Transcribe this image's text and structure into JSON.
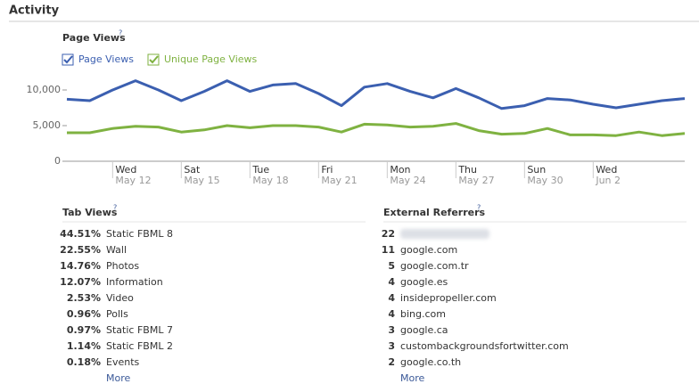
{
  "header": {
    "title": "Activity"
  },
  "chart_data": {
    "type": "line",
    "title": "Page Views",
    "help": "?",
    "category_days": [
      null,
      null,
      "Wed",
      null,
      null,
      "Sat",
      null,
      null,
      "Tue",
      null,
      null,
      "Fri",
      null,
      null,
      "Mon",
      null,
      null,
      "Thu",
      null,
      null,
      "Sun",
      null,
      null,
      "Wed",
      null,
      null,
      null,
      null
    ],
    "categories": [
      null,
      null,
      "May 12",
      null,
      null,
      "May 15",
      null,
      null,
      "May 18",
      null,
      null,
      "May 21",
      null,
      null,
      "May 24",
      null,
      null,
      "May 27",
      null,
      null,
      "May 30",
      null,
      null,
      "Jun 2",
      null,
      null,
      null,
      null
    ],
    "series": [
      {
        "name": "Page Views",
        "color": "#3b5fb0",
        "values": [
          8700,
          8500,
          10000,
          11300,
          10000,
          8500,
          9800,
          11300,
          9800,
          10700,
          10900,
          9500,
          7800,
          10400,
          10900,
          9800,
          8900,
          10200,
          8900,
          7400,
          7800,
          8800,
          8600,
          8000,
          7500,
          8000,
          8500,
          8800
        ]
      },
      {
        "name": "Unique Page Views",
        "color": "#7fb241",
        "values": [
          4000,
          4000,
          4600,
          4900,
          4800,
          4100,
          4400,
          5000,
          4700,
          5000,
          5000,
          4800,
          4100,
          5200,
          5100,
          4800,
          4900,
          5300,
          4300,
          3800,
          3900,
          4600,
          3700,
          3700,
          3600,
          4100,
          3600,
          3900
        ]
      }
    ],
    "ylim": [
      0,
      12000
    ],
    "yticks": [
      0,
      {
        "value": 5000,
        "label": "5,000"
      },
      {
        "value": 10000,
        "label": "10,000"
      }
    ]
  },
  "tab_views": {
    "title": "Tab Views",
    "help": "?",
    "more": "More",
    "rows": [
      [
        "44.51%",
        "Static FBML 8"
      ],
      [
        "22.55%",
        "Wall"
      ],
      [
        "14.76%",
        "Photos"
      ],
      [
        "12.07%",
        "Information"
      ],
      [
        "2.53%",
        "Video"
      ],
      [
        "0.96%",
        "Polls"
      ],
      [
        "0.97%",
        "Static FBML 7"
      ],
      [
        "1.14%",
        "Static FBML 2"
      ],
      [
        "0.18%",
        "Events"
      ]
    ]
  },
  "referrers": {
    "title": "External Referrers",
    "help": "?",
    "more": "More",
    "rows": [
      {
        "count": "22"
      },
      {
        "count": "11",
        "name": "google.com"
      },
      {
        "count": "5",
        "name": "google.com.tr"
      },
      {
        "count": "4",
        "name": "google.es"
      },
      {
        "count": "4",
        "name": "insidepropeller.com"
      },
      {
        "count": "4",
        "name": "bing.com"
      },
      {
        "count": "3",
        "name": "google.ca"
      },
      {
        "count": "3",
        "name": "custombackgroundsfortwitter.com"
      },
      {
        "count": "2",
        "name": "google.co.th"
      }
    ]
  }
}
